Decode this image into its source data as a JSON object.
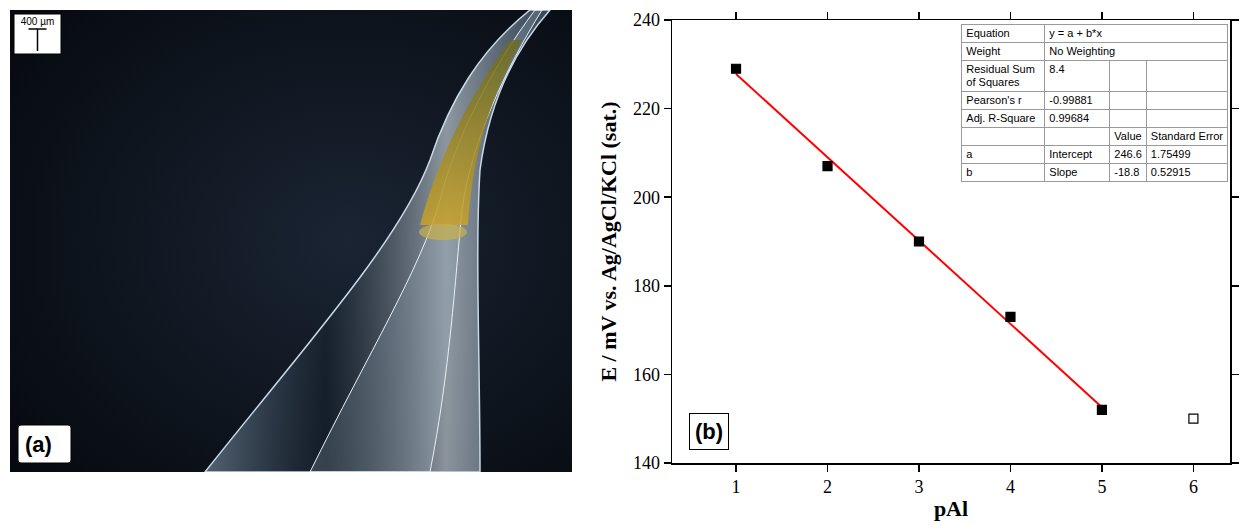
{
  "photo": {
    "scale_bar": "400 µm",
    "panel_label": "(a)"
  },
  "chart_data": {
    "type": "scatter",
    "panel_label": "(b)",
    "x_label": "pAl",
    "y_label": "E / mV vs. Ag/AgCl/KCl (sat.)",
    "xlim": [
      0.3,
      6.4
    ],
    "xticks": [
      1,
      2,
      3,
      4,
      5,
      6
    ],
    "ylim": [
      140,
      240
    ],
    "yticks": [
      140,
      160,
      180,
      200,
      220,
      240
    ],
    "grid": false,
    "series": [
      {
        "type": "scatter",
        "marker": "square",
        "color": "#000000",
        "x": [
          1,
          2,
          3,
          4,
          5
        ],
        "values": [
          229,
          207,
          190,
          173,
          152
        ]
      },
      {
        "type": "scatter",
        "marker": "open square",
        "color": "#000000",
        "x": [
          6
        ],
        "values": [
          150
        ]
      },
      {
        "type": "line",
        "line_style": "solid",
        "color": "#ff0000",
        "x": [
          1,
          5
        ],
        "values": [
          227.8,
          152.6
        ]
      }
    ],
    "fit_table": {
      "info": [
        [
          "Equation",
          "y = a + b*x"
        ],
        [
          "Weight",
          "No Weighting"
        ],
        [
          "Residual Sum of Squares",
          8.4
        ],
        [
          "Pearson's r",
          -0.99881
        ],
        [
          "Adj. R-Square",
          0.99684
        ]
      ],
      "columns": [
        "Value",
        "Standard Error"
      ],
      "params": [
        {
          "name": "a",
          "role": "Intercept",
          "value": 246.6,
          "stderr": 1.75499
        },
        {
          "name": "b",
          "role": "Slope",
          "value": -18.8,
          "stderr": 0.52915
        }
      ]
    }
  }
}
